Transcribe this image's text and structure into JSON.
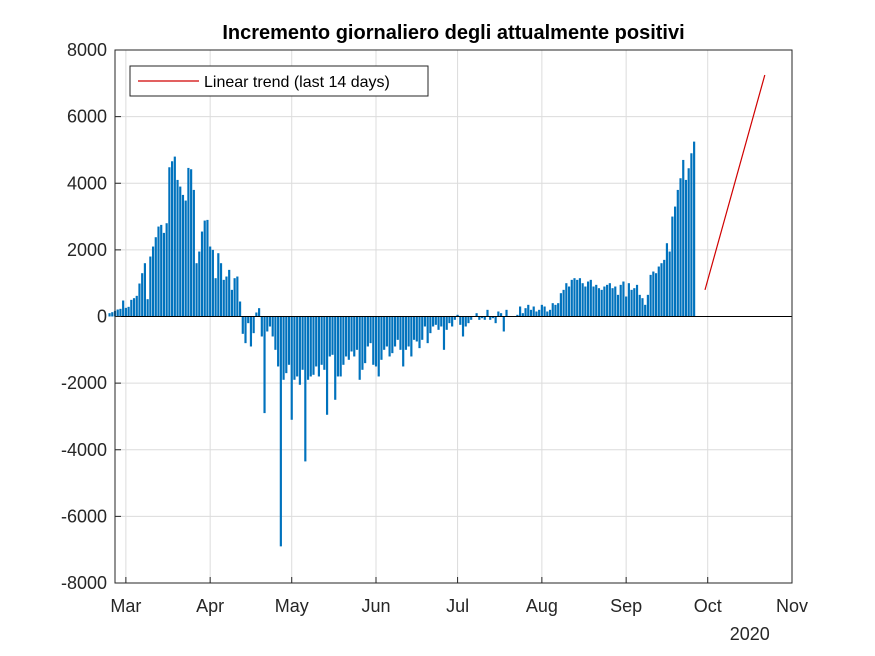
{
  "chart_data": {
    "type": "bar",
    "title": "Incremento giornaliero degli attualmente positivi",
    "xlabel": "",
    "ylabel": "",
    "year_label": "2020",
    "x_tick_labels": [
      "Mar",
      "Apr",
      "May",
      "Jun",
      "Jul",
      "Aug",
      "Sep",
      "Oct",
      "Nov"
    ],
    "ylim": [
      -8000,
      8000
    ],
    "y_ticks": [
      -8000,
      -6000,
      -4000,
      -2000,
      0,
      2000,
      4000,
      6000,
      8000
    ],
    "grid": true,
    "legend": {
      "placement": "top-left",
      "entries": [
        "Linear trend (last 14 days)"
      ]
    },
    "colors": {
      "bars": "#0072BD",
      "trend": "#D00000",
      "grid": "#DCDCDC",
      "axis": "#262626"
    },
    "x": {
      "start": "2020-02-24",
      "end": "2020-10-14",
      "axis_start": "2020-02-26",
      "axis_end": "2020-11-01"
    },
    "values": [
      100,
      130,
      170,
      210,
      230,
      480,
      260,
      290,
      500,
      550,
      620,
      990,
      1300,
      1600,
      520,
      1800,
      2100,
      2380,
      2700,
      2750,
      2510,
      2800,
      4480,
      4660,
      4800,
      4100,
      3900,
      3650,
      3480,
      4460,
      4420,
      3800,
      1600,
      1950,
      2550,
      2880,
      2900,
      2100,
      2000,
      1150,
      1900,
      1600,
      1100,
      1200,
      1400,
      800,
      1150,
      1200,
      450,
      -520,
      -800,
      -200,
      -900,
      -500,
      120,
      250,
      -600,
      -2900,
      -450,
      -300,
      -600,
      -1000,
      -1500,
      -6900,
      -1900,
      -1700,
      -1450,
      -3100,
      -1900,
      -1800,
      -2050,
      -1600,
      -4350,
      -1900,
      -1800,
      -1750,
      -1500,
      -1800,
      -1450,
      -1600,
      -2950,
      -1200,
      -1150,
      -2500,
      -1800,
      -1800,
      -1450,
      -1200,
      -1300,
      -1050,
      -1200,
      -1000,
      -1900,
      -1600,
      -1400,
      -900,
      -800,
      -1450,
      -1500,
      -1800,
      -1300,
      -1000,
      -900,
      -1200,
      -1100,
      -900,
      -700,
      -1000,
      -1500,
      -1000,
      -900,
      -1200,
      -700,
      -750,
      -950,
      -700,
      -300,
      -800,
      -500,
      -300,
      -250,
      -400,
      -300,
      -1000,
      -400,
      -200,
      -300,
      -100,
      50,
      -250,
      -600,
      -300,
      -200,
      -100,
      0,
      100,
      -100,
      -50,
      -100,
      200,
      -100,
      -50,
      -200,
      150,
      100,
      -450,
      200,
      0,
      0,
      0,
      50,
      300,
      100,
      250,
      350,
      200,
      300,
      150,
      200,
      350,
      300,
      150,
      200,
      400,
      350,
      400,
      700,
      800,
      1000,
      900,
      1100,
      1150,
      1100,
      1150,
      1000,
      900,
      1050,
      1100,
      900,
      950,
      850,
      800,
      900,
      950,
      1000,
      850,
      900,
      650,
      950,
      1050,
      600,
      1000,
      800,
      850,
      950,
      650,
      550,
      350,
      650,
      1250,
      1350,
      1300,
      1500,
      1600,
      1700,
      2200,
      1950,
      3000,
      3300,
      3800,
      4150,
      4700,
      4100,
      4450,
      4900,
      5250
    ],
    "trend": {
      "x": [
        "2020-09-30",
        "2020-10-22"
      ],
      "y": [
        800,
        7250
      ]
    }
  }
}
